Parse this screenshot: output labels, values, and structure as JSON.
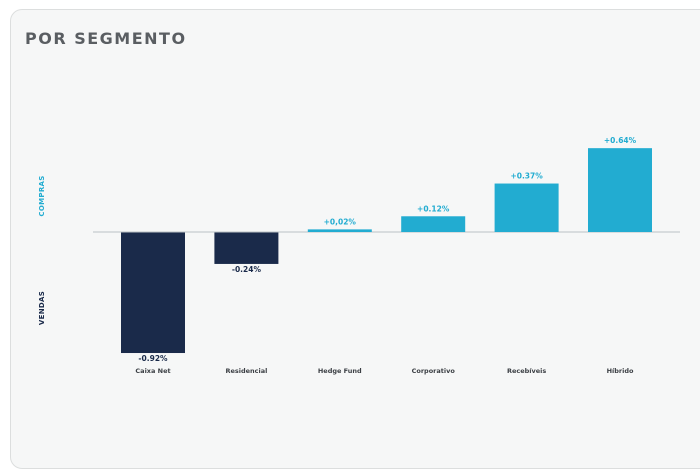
{
  "card": {
    "title": "POR SEGMENTO"
  },
  "colors": {
    "positive": "#22acd1",
    "negative": "#1a2a4a",
    "baseline": "#b9c0c4",
    "compras_label": "#22acd1",
    "vendas_label": "#1a2a4a"
  },
  "chart_data": {
    "type": "bar",
    "title": "POR SEGMENTO",
    "y_axis_labels": {
      "top": "COMPRAS",
      "bottom": "VENDAS"
    },
    "categories": [
      "Caixa Net",
      "Residencial",
      "Hedge Fund",
      "Corporativo",
      "Recebíveis",
      "Híbrido"
    ],
    "values": [
      -0.92,
      -0.24,
      0.02,
      0.12,
      0.37,
      0.64
    ],
    "value_labels": [
      "-0.92%",
      "-0.24%",
      "+0,02%",
      "+0.12%",
      "+0.37%",
      "+0.64%"
    ],
    "ylim": [
      -0.92,
      0.64
    ],
    "grid": false,
    "legend": "none"
  }
}
